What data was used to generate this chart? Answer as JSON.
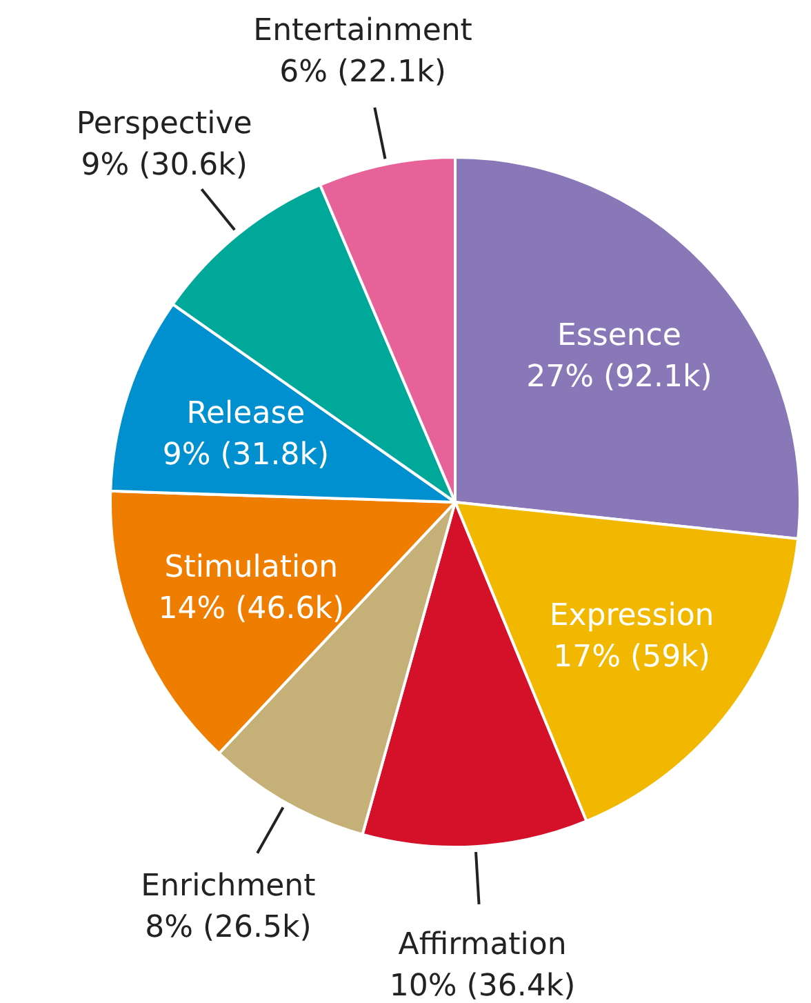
{
  "chart_data": {
    "type": "pie",
    "categories": [
      "Essence",
      "Expression",
      "Affirmation",
      "Enrichment",
      "Stimulation",
      "Release",
      "Perspective",
      "Entertainment"
    ],
    "values": [
      92100,
      59000,
      36400,
      26500,
      46600,
      31800,
      30600,
      22100
    ],
    "value_labels": [
      "27% (92.1k)",
      "17% (59k)",
      "10% (36.4k)",
      "8% (26.5k)",
      "14% (46.6k)",
      "9% (31.8k)",
      "9% (30.6k)",
      "6% (22.1k)"
    ],
    "colors": [
      "#8878b8",
      "#f2b800",
      "#d5112a",
      "#c5b078",
      "#ef7d00",
      "#0090d0",
      "#00a89a",
      "#e8629a"
    ]
  }
}
